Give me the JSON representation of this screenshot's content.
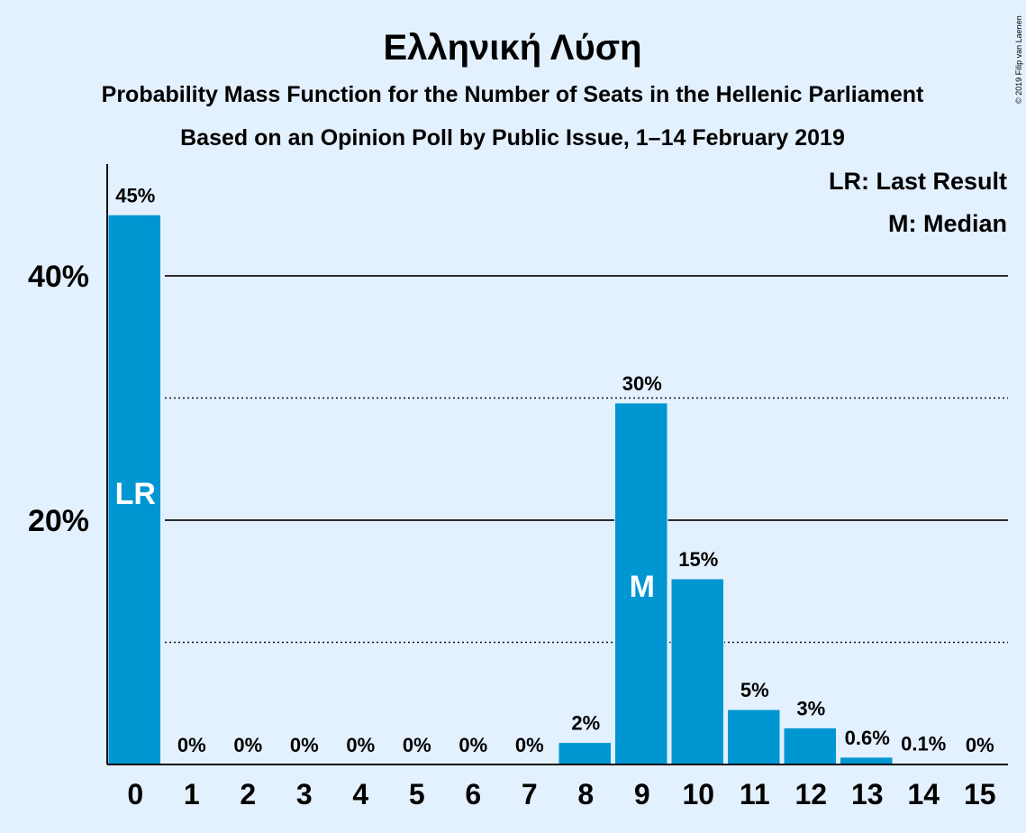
{
  "chart_data": {
    "type": "bar",
    "title": "Ελληνική Λύση",
    "subtitle_1": "Probability Mass Function for the Number of Seats in the Hellenic Parliament",
    "subtitle_2": "Based on an Opinion Poll by Public Issue, 1–14 February 2019",
    "copyright": "© 2019 Filip van Laenen",
    "categories": [
      "0",
      "1",
      "2",
      "3",
      "4",
      "5",
      "6",
      "7",
      "8",
      "9",
      "10",
      "11",
      "12",
      "13",
      "14",
      "15"
    ],
    "values": [
      45,
      0,
      0,
      0,
      0,
      0,
      0,
      0,
      1.8,
      29.6,
      15.2,
      4.5,
      3.0,
      0.6,
      0.1,
      0
    ],
    "value_labels": [
      "45%",
      "0%",
      "0%",
      "0%",
      "0%",
      "0%",
      "0%",
      "0%",
      "2%",
      "30%",
      "15%",
      "5%",
      "3%",
      "0.6%",
      "0.1%",
      "0%"
    ],
    "ylim": [
      0,
      49
    ],
    "yticks": [
      {
        "value": 20,
        "label": "20%",
        "style": "solid"
      },
      {
        "value": 40,
        "label": "40%",
        "style": "solid"
      }
    ],
    "minor_gridlines": [
      10,
      30
    ],
    "markers": [
      {
        "category": "0",
        "label": "LR"
      },
      {
        "category": "9",
        "label": "M"
      }
    ],
    "legend": [
      "LR: Last Result",
      "M: Median"
    ],
    "legend_position": "top-right",
    "bar_color": "#0096d2"
  }
}
